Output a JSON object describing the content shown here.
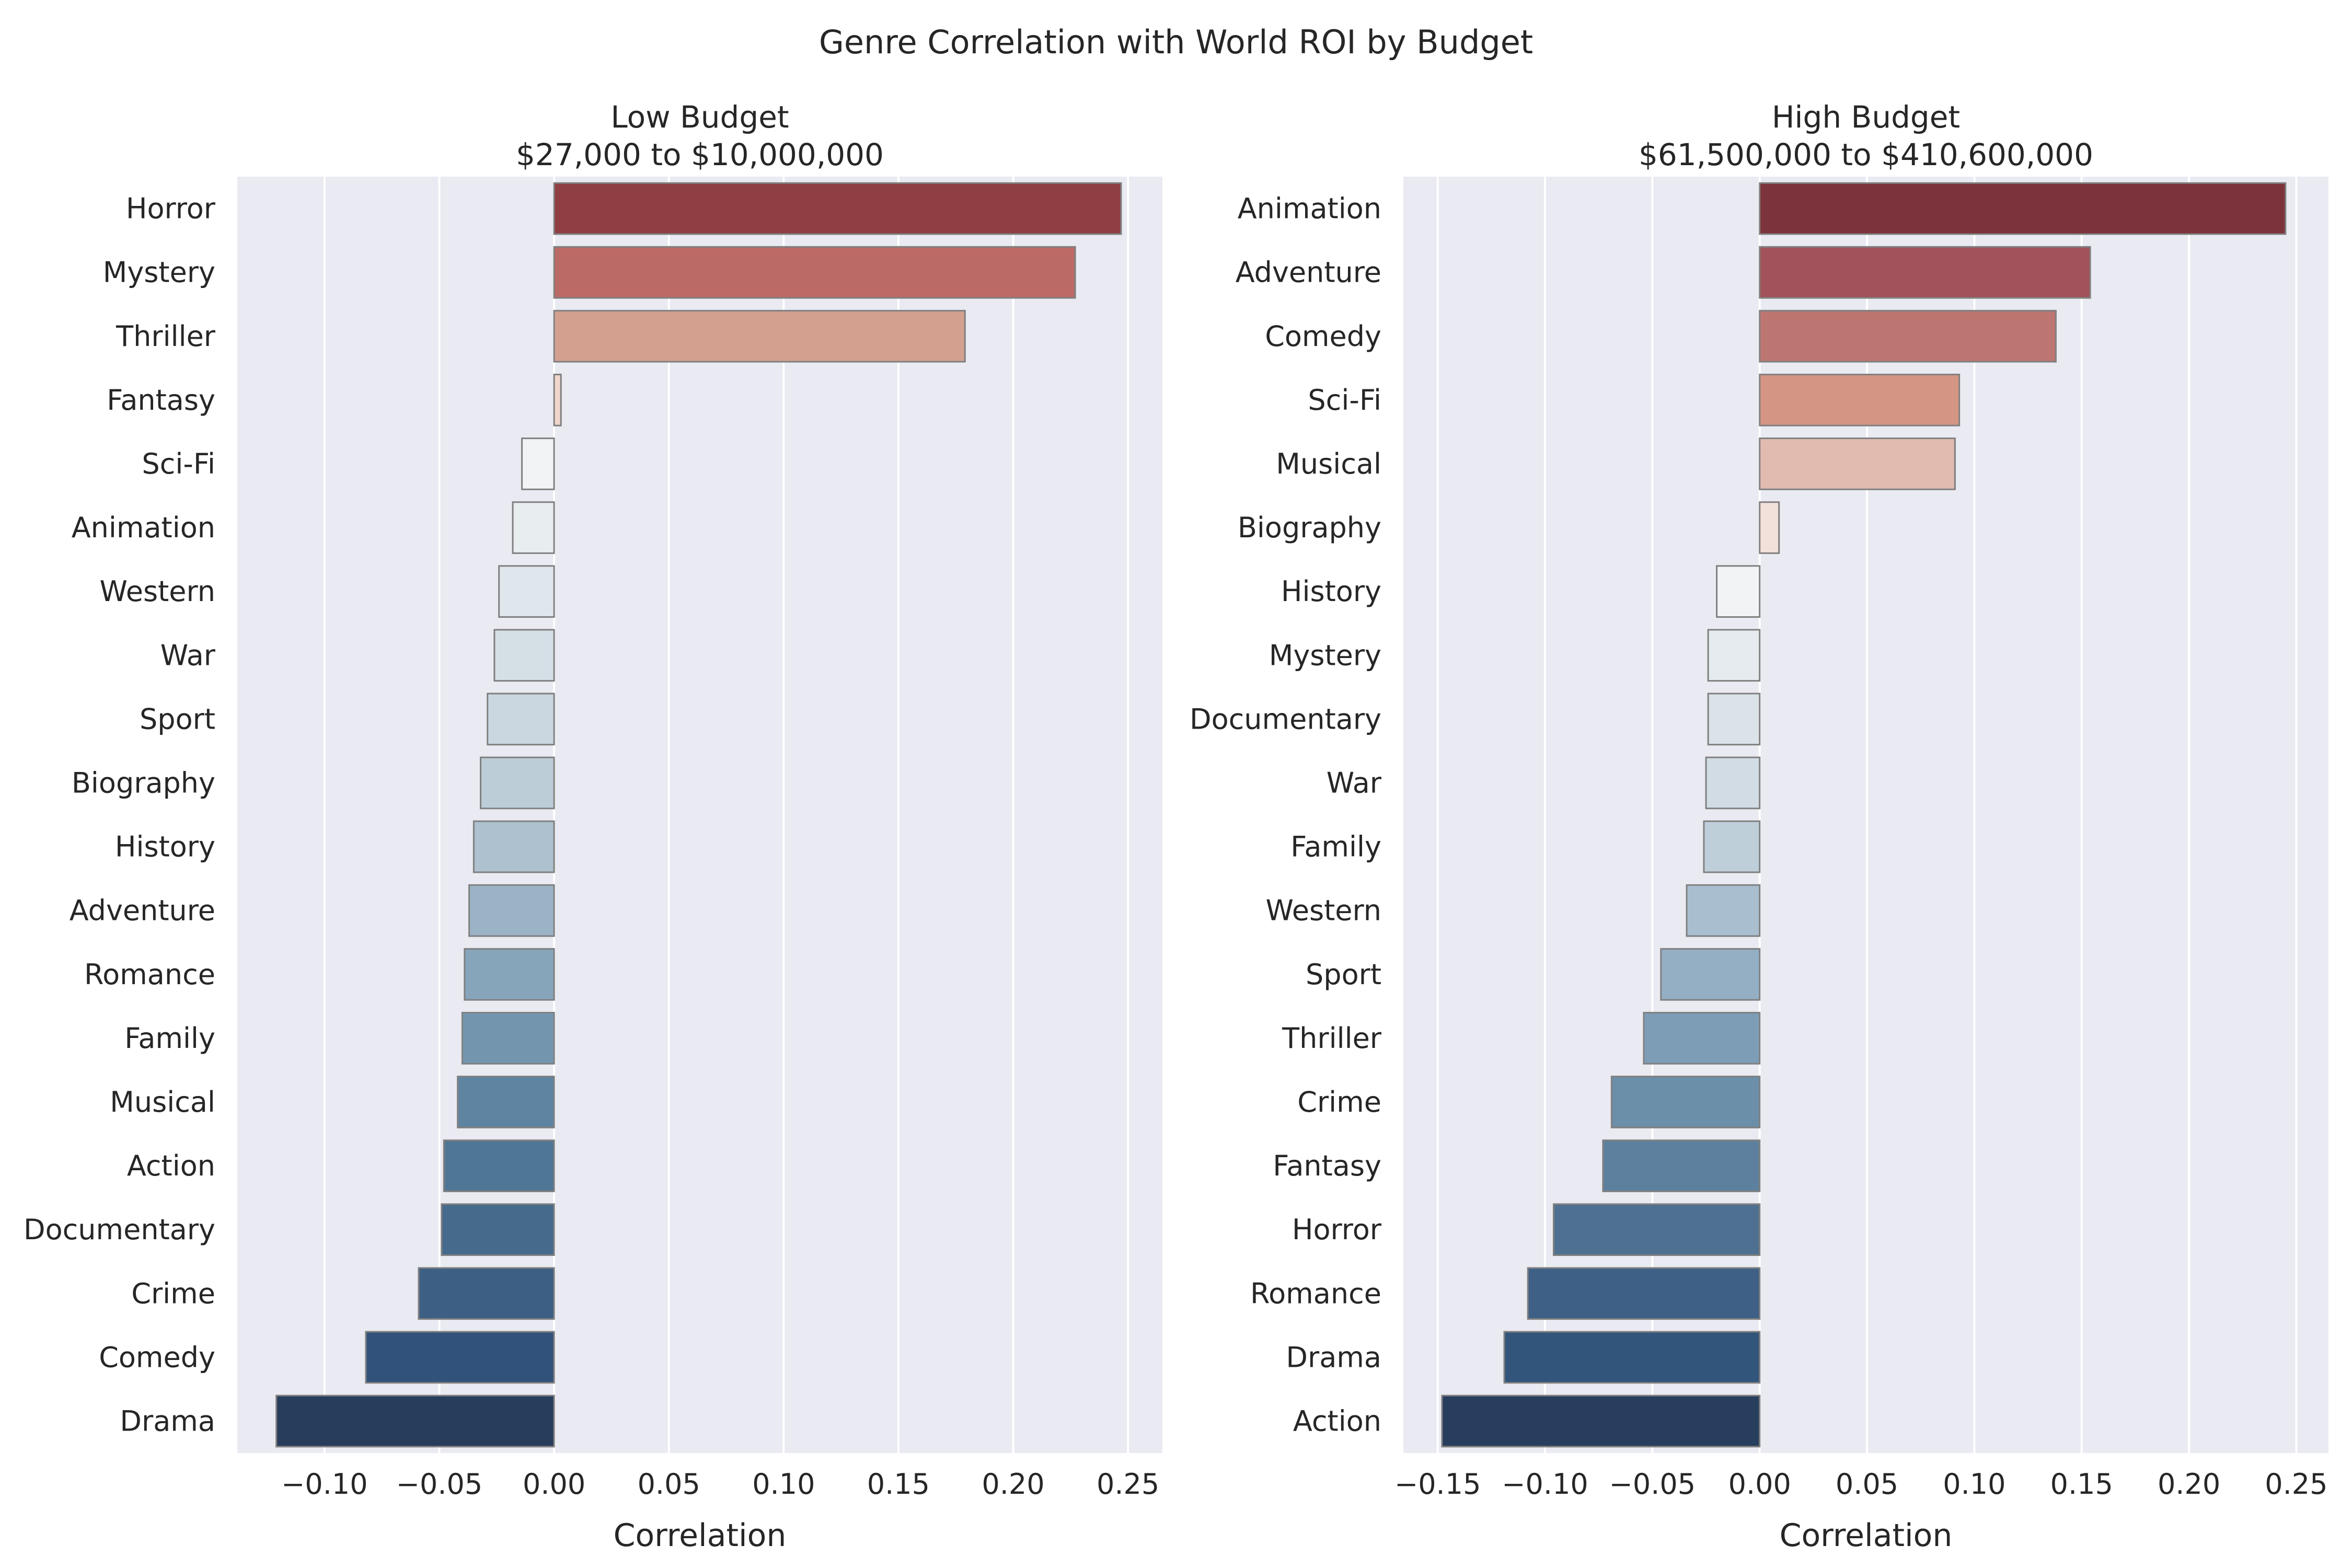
{
  "figure_title": "Genre Correlation with World ROI by Budget",
  "chart_data": [
    {
      "type": "bar",
      "orientation": "horizontal",
      "title": "Low Budget",
      "subtitle": "$27,000 to $10,000,000",
      "xlabel": "Correlation",
      "ylabel": "",
      "xlim": [
        -0.138,
        0.265
      ],
      "xticks": [
        -0.1,
        -0.05,
        0.0,
        0.05,
        0.1,
        0.15,
        0.2,
        0.25
      ],
      "xtick_labels": [
        "−0.10",
        "−0.05",
        "0.00",
        "0.05",
        "0.10",
        "0.15",
        "0.20",
        "0.25"
      ],
      "grid": true,
      "palette": [
        "#8f3e44",
        "#bc6a66",
        "#d3a090",
        "#efd5cb",
        "#f2f3f4",
        "#e8edf0",
        "#dfe6ec",
        "#d5dfe6",
        "#cad7e0",
        "#bccdd8",
        "#adc1cf",
        "#9bb4c5",
        "#86a5ba",
        "#7396ae",
        "#5f84a1",
        "#507695",
        "#456a8c",
        "#3d5f84",
        "#31527a",
        "#283d5c"
      ],
      "categories": [
        "Horror",
        "Mystery",
        "Thriller",
        "Fantasy",
        "Sci-Fi",
        "Animation",
        "Western",
        "War",
        "Sport",
        "Biography",
        "History",
        "Adventure",
        "Romance",
        "Family",
        "Musical",
        "Action",
        "Documentary",
        "Crime",
        "Comedy",
        "Drama"
      ],
      "values": [
        0.247,
        0.227,
        0.179,
        0.003,
        -0.014,
        -0.018,
        -0.024,
        -0.026,
        -0.029,
        -0.032,
        -0.035,
        -0.037,
        -0.039,
        -0.04,
        -0.042,
        -0.048,
        -0.049,
        -0.059,
        -0.082,
        -0.121
      ]
    },
    {
      "type": "bar",
      "orientation": "horizontal",
      "title": "High Budget",
      "subtitle": "$61,500,000 to $410,600,000",
      "xlabel": "Correlation",
      "ylabel": "",
      "xlim": [
        -0.166,
        0.265
      ],
      "xticks": [
        -0.15,
        -0.1,
        -0.05,
        0.0,
        0.05,
        0.1,
        0.15,
        0.2,
        0.25
      ],
      "xtick_labels": [
        "−0.15",
        "−0.10",
        "−0.05",
        "0.00",
        "0.05",
        "0.10",
        "0.15",
        "0.20",
        "0.25"
      ],
      "grid": true,
      "palette": [
        "#7d333b",
        "#a2525a",
        "#bd7572",
        "#d49585",
        "#e1bbb0",
        "#f2e0db",
        "#f1f3f5",
        "#e5ebef",
        "#dbe3e9",
        "#d1dce4",
        "#bfcfda",
        "#a9bfcf",
        "#94afc4",
        "#7d9db6",
        "#6b8ea9",
        "#5d809e",
        "#4e7191",
        "#3e6086",
        "#32557b",
        "#283e5e"
      ],
      "categories": [
        "Animation",
        "Adventure",
        "Comedy",
        "Sci-Fi",
        "Musical",
        "Biography",
        "History",
        "Mystery",
        "Documentary",
        "War",
        "Family",
        "Western",
        "Sport",
        "Thriller",
        "Crime",
        "Fantasy",
        "Horror",
        "Romance",
        "Drama",
        "Action"
      ],
      "values": [
        0.245,
        0.154,
        0.138,
        0.093,
        0.091,
        0.009,
        -0.02,
        -0.024,
        -0.024,
        -0.025,
        -0.026,
        -0.034,
        -0.046,
        -0.054,
        -0.069,
        -0.073,
        -0.096,
        -0.108,
        -0.119,
        -0.148
      ]
    }
  ]
}
